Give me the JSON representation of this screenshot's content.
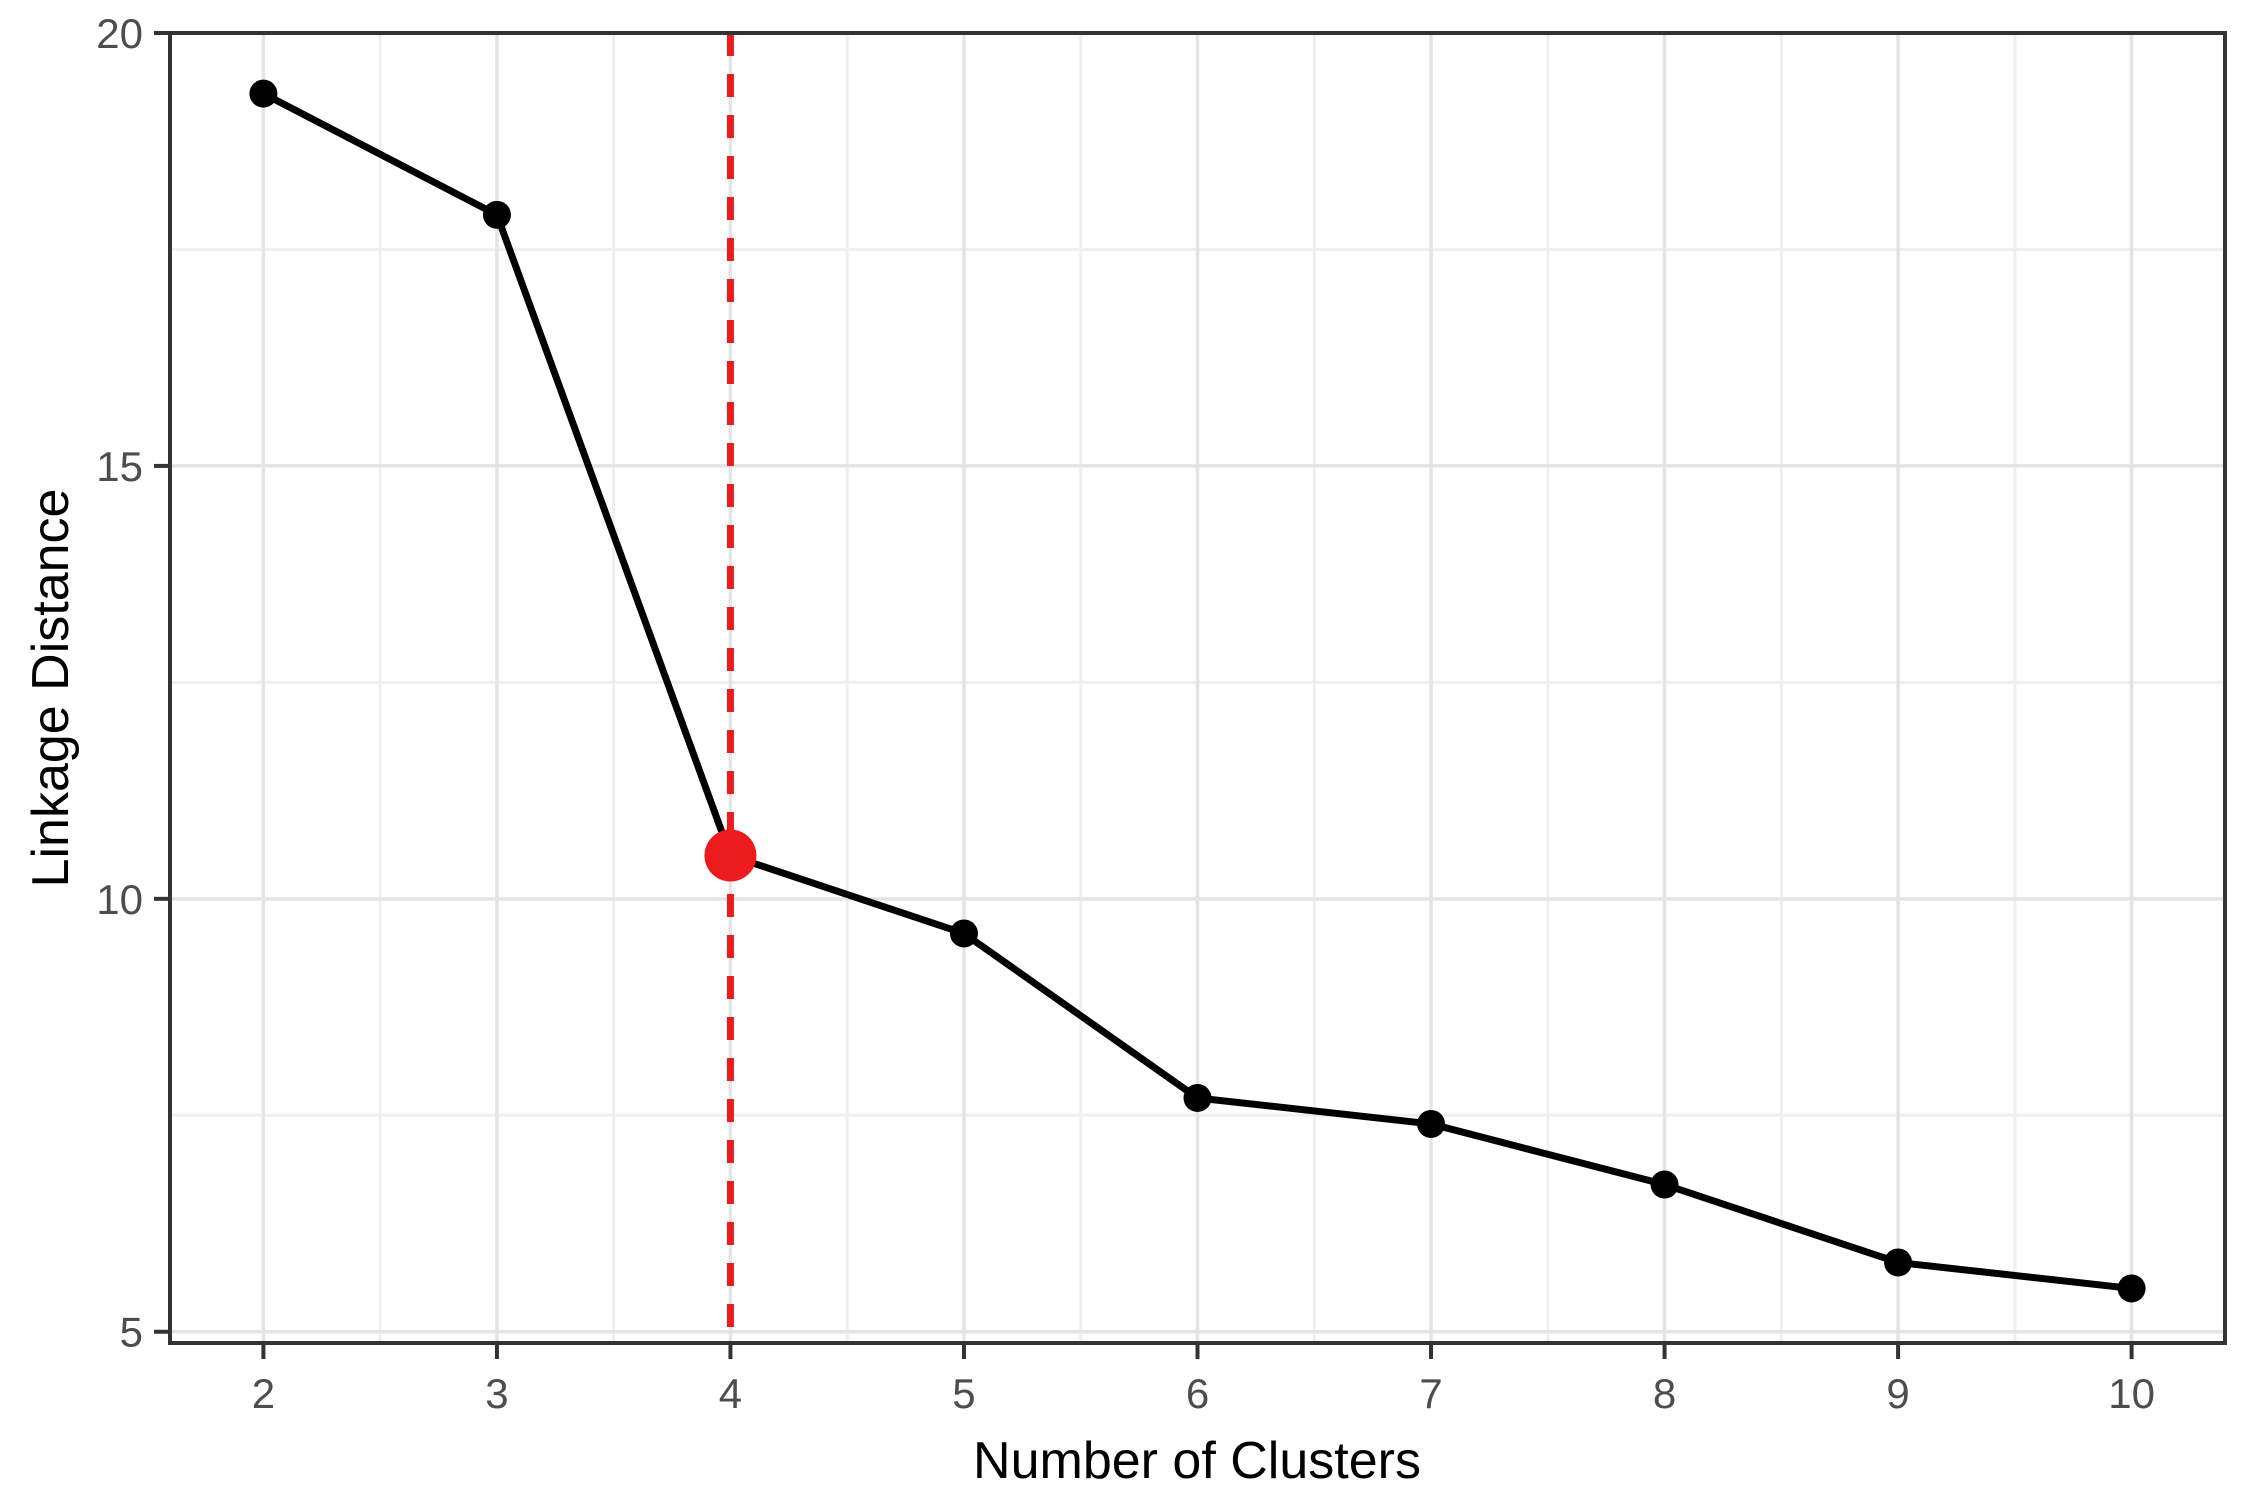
{
  "chart_data": {
    "type": "line",
    "title": "",
    "xlabel": "Number of Clusters",
    "ylabel": "Linkage Distance",
    "series": [
      {
        "name": "linkage-distance",
        "x": [
          2,
          3,
          4,
          5,
          6,
          7,
          8,
          9,
          10
        ],
        "y": [
          19.3,
          17.9,
          10.5,
          9.6,
          7.7,
          7.4,
          6.7,
          5.8,
          5.5
        ]
      }
    ],
    "highlight_point": {
      "x": 4,
      "y": 10.5,
      "color": "#ED1C1C"
    },
    "vline": {
      "x": 4,
      "style": "dashed",
      "color": "#ED1C1C",
      "dash": "23 18"
    },
    "xlim": [
      1.6,
      10.4
    ],
    "ylim": [
      4.87,
      20
    ],
    "x_ticks": [
      2,
      3,
      4,
      5,
      6,
      7,
      8,
      9,
      10
    ],
    "y_ticks": [
      5,
      10,
      15,
      20
    ],
    "x_minor_ticks": [
      2.5,
      3.5,
      4.5,
      5.5,
      6.5,
      7.5,
      8.5,
      9.5
    ],
    "y_minor_ticks": [
      7.5,
      12.5,
      17.5
    ],
    "grid": "on",
    "legend": "none",
    "colors": {
      "line": "#000000",
      "point": "#000000",
      "highlight": "#ED1C1C",
      "panel_border": "#333333",
      "tick_mark": "#333333",
      "grid_major": "#e4e4e4",
      "grid_minor": "#efefef",
      "tick_label": "#4d4d4d",
      "axis_title": "#000000",
      "background": "#ffffff"
    }
  }
}
